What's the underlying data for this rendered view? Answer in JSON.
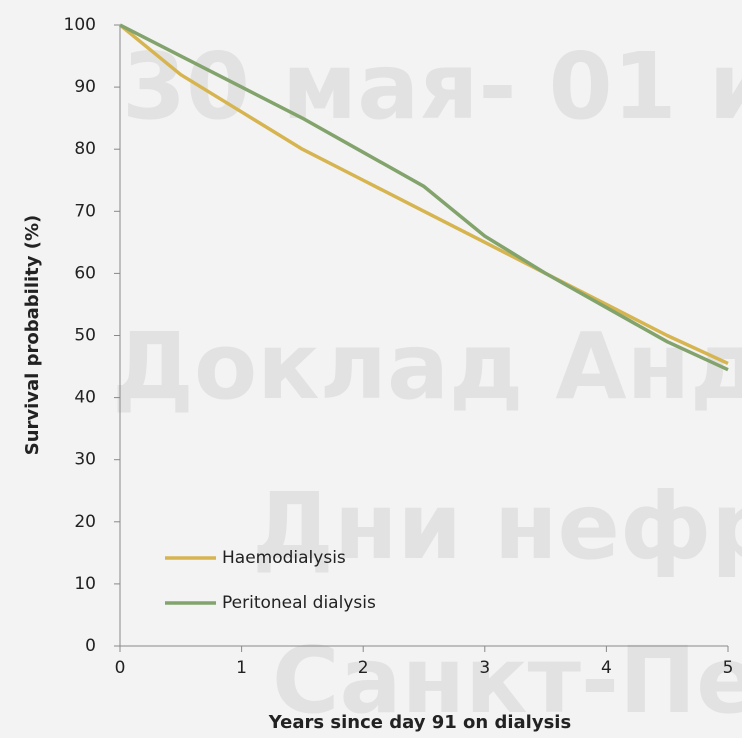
{
  "chart_data": {
    "type": "line",
    "x_label": "Years since day 91 on dialysis",
    "y_label": "Survival probability (%)",
    "x": [
      0,
      0.5,
      1,
      1.5,
      2,
      2.5,
      3,
      3.5,
      4,
      4.5,
      5
    ],
    "series": [
      {
        "name": "Haemodialysis",
        "color": "#d6b550",
        "values": [
          100,
          92,
          86,
          80,
          75,
          70,
          65,
          60,
          55,
          50,
          45.5
        ]
      },
      {
        "name": "Peritoneal dialysis",
        "color": "#82a36c",
        "values": [
          100,
          95,
          90,
          85,
          79.5,
          74,
          66,
          60,
          54.5,
          49,
          44.5
        ]
      }
    ],
    "xlim": [
      0,
      5
    ],
    "xticks": [
      0,
      1,
      2,
      3,
      4,
      5
    ],
    "ylim": [
      0,
      100
    ],
    "yticks": [
      0,
      10,
      20,
      30,
      40,
      50,
      60,
      70,
      80,
      90,
      100
    ],
    "grid": false,
    "legend": "lower-left",
    "watermark": [
      "30 мая- 01 и",
      "Доклад Анд",
      "Дни нефр",
      "Санкт-Пет"
    ]
  }
}
